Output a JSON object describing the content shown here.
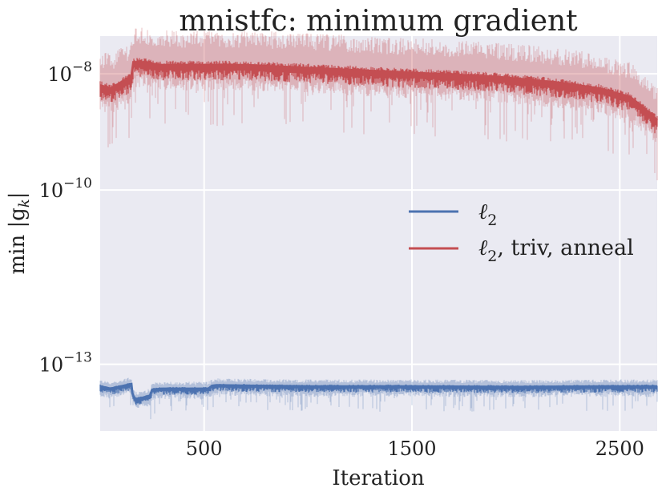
{
  "chart_data": {
    "type": "line",
    "title": "mnistfc: minimum gradient",
    "xlabel": "Iteration",
    "ylabel": "min |g",
    "ylabel_sub": "k",
    "ylabel_close": "|",
    "xlim": [
      0,
      2680
    ],
    "ylim_log10": [
      -14.15,
      -7.35
    ],
    "xticks": [
      {
        "value": 500,
        "label": "500"
      },
      {
        "value": 1500,
        "label": "1500"
      },
      {
        "value": 2500,
        "label": "2500"
      }
    ],
    "yticks": [
      {
        "value": -8,
        "base": "10",
        "exp": "−8"
      },
      {
        "value": -10,
        "base": "10",
        "exp": "−10"
      },
      {
        "value": -13,
        "base": "10",
        "exp": "−13"
      }
    ],
    "legend_position": "center-right",
    "series": [
      {
        "name": "ℓ",
        "name_sub": "2",
        "color": "#4c72b0",
        "x": [
          0,
          50,
          100,
          150,
          155,
          160,
          170,
          200,
          220,
          240,
          250,
          270,
          300,
          400,
          500,
          520,
          540,
          560,
          700,
          1000,
          1500,
          2000,
          2500,
          2680
        ],
        "y_log10": [
          -13.38,
          -13.42,
          -13.38,
          -13.34,
          -13.5,
          -13.55,
          -13.6,
          -13.58,
          -13.56,
          -13.54,
          -13.44,
          -13.43,
          -13.42,
          -13.42,
          -13.42,
          -13.42,
          -13.37,
          -13.36,
          -13.37,
          -13.38,
          -13.38,
          -13.39,
          -13.38,
          -13.38
        ]
      },
      {
        "name": "ℓ",
        "name_sub": "2",
        "name_suffix": ", triv, anneal",
        "color": "#c44e52",
        "x": [
          0,
          50,
          100,
          150,
          160,
          200,
          300,
          500,
          700,
          1000,
          1300,
          1600,
          1900,
          2200,
          2400,
          2550,
          2620,
          2680
        ],
        "y_log10": [
          -8.2,
          -8.25,
          -8.15,
          -8.05,
          -7.8,
          -7.8,
          -7.85,
          -7.85,
          -7.85,
          -7.9,
          -7.95,
          -8.0,
          -8.05,
          -8.15,
          -8.25,
          -8.4,
          -8.6,
          -8.8
        ]
      }
    ]
  }
}
